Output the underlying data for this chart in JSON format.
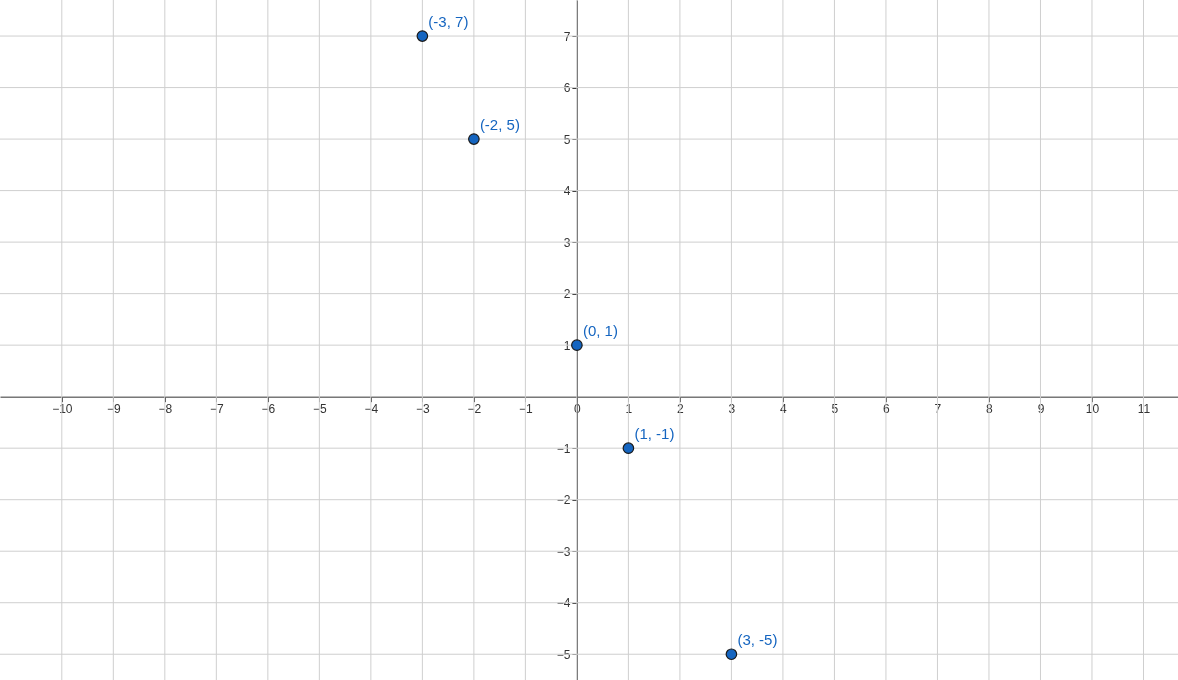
{
  "chart_data": {
    "type": "scatter",
    "x": [
      -3,
      -2,
      0,
      1,
      3
    ],
    "values": [
      7,
      5,
      1,
      -1,
      -5
    ],
    "color": "#1565c0",
    "marker": "circle",
    "xlim": [
      -11.2,
      11.67
    ],
    "ylim": [
      -5.5,
      7.7
    ],
    "xticks": [
      -10,
      -9,
      -8,
      -7,
      -6,
      -5,
      -4,
      -3,
      -2,
      -1,
      0,
      1,
      2,
      3,
      4,
      5,
      6,
      7,
      8,
      9,
      10,
      11
    ],
    "yticks": [
      -5,
      -4,
      -3,
      -2,
      -1,
      1,
      2,
      3,
      4,
      5,
      6,
      7
    ],
    "grid": true,
    "annotations": [
      {
        "text": "(-3, 7)",
        "x": -3,
        "y": 7
      },
      {
        "text": "(-2, 5)",
        "x": -2,
        "y": 5
      },
      {
        "text": "(0, 1)",
        "x": 0,
        "y": 1
      },
      {
        "text": "(1, -1)",
        "x": 1,
        "y": -1
      },
      {
        "text": "(3, -5)",
        "x": 3,
        "y": -5
      }
    ]
  }
}
